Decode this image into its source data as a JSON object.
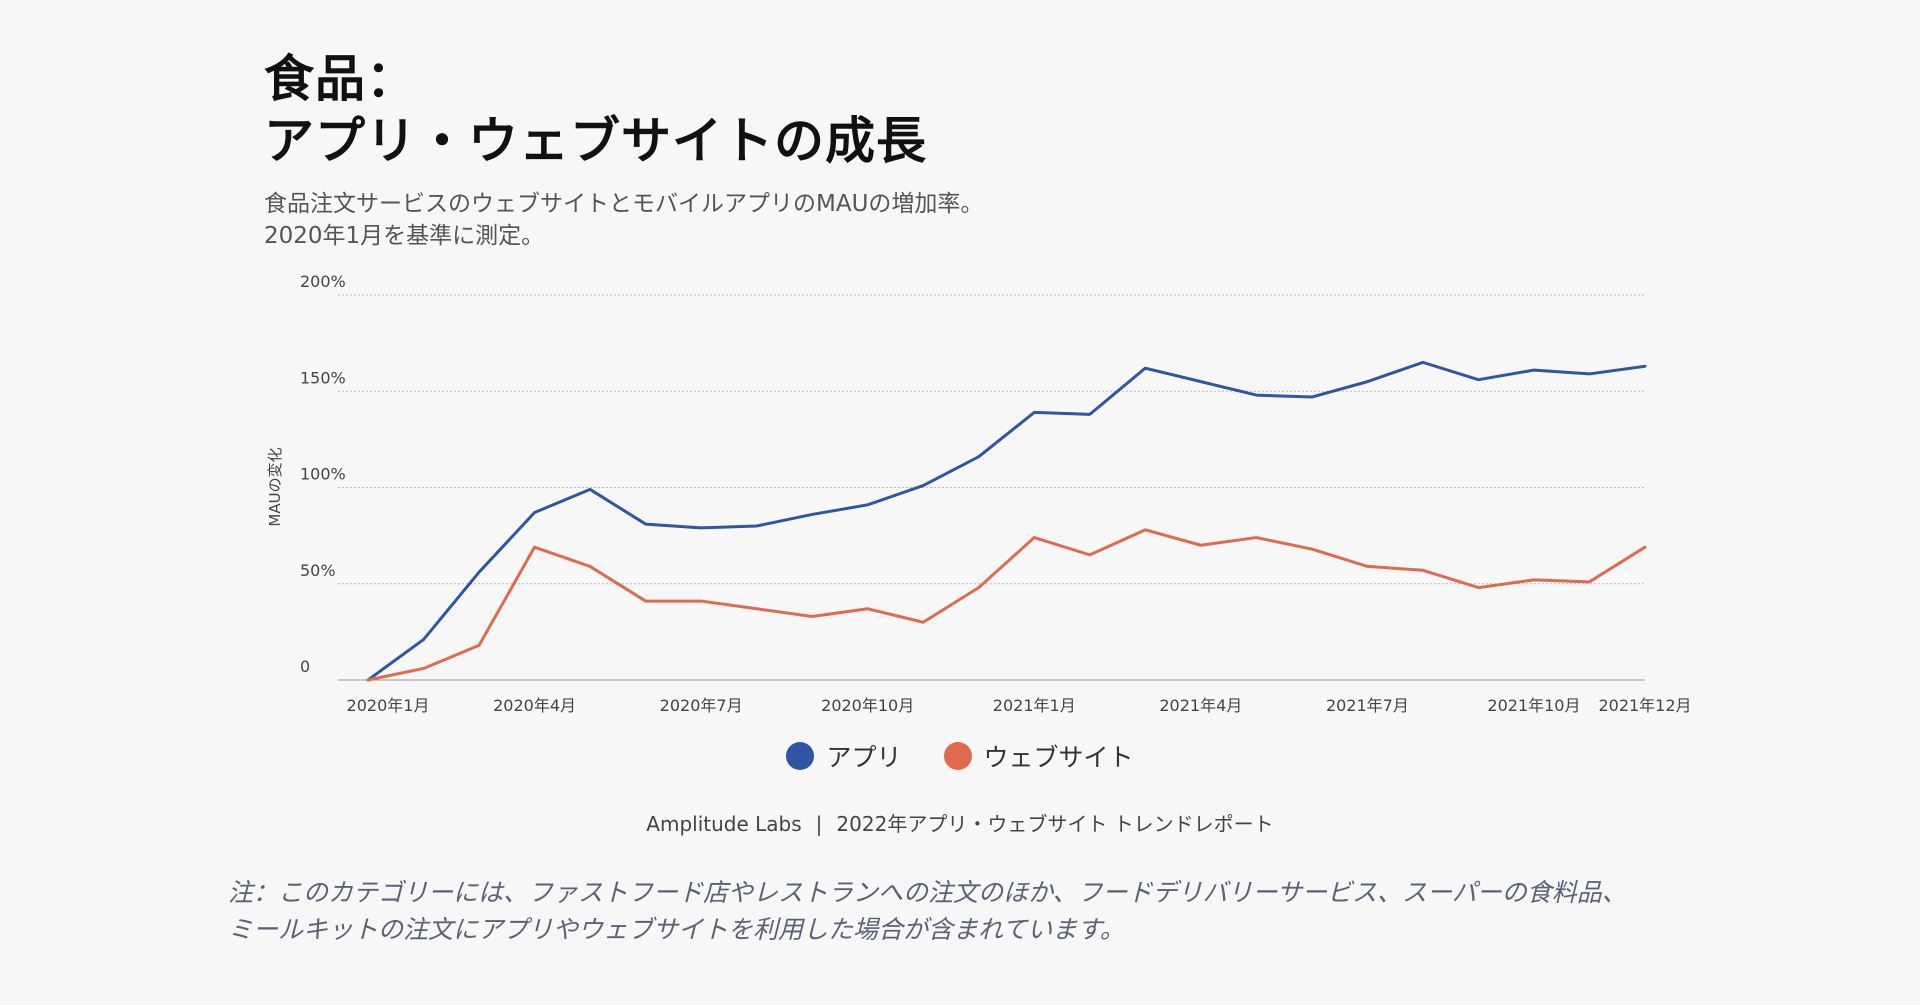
{
  "header": {
    "title_line1": "食品：",
    "title_line2": "アプリ・ウェブサイトの成長",
    "subtitle_line1": "食品注文サービスのウェブサイトとモバイルアプリのMAUの増加率。",
    "subtitle_line2": "2020年1月を基準に測定。"
  },
  "chart_data": {
    "type": "line",
    "title": "食品：アプリ・ウェブサイトの成長",
    "ylabel": "MAUの変化",
    "xlabel": "",
    "ylim": [
      0,
      200
    ],
    "y_ticks": [
      0,
      50,
      100,
      150,
      200
    ],
    "y_tick_labels": [
      "0",
      "50%",
      "100%",
      "150%",
      "200%"
    ],
    "x_tick_labels": [
      "2020年1月",
      "2020年4月",
      "2020年7月",
      "2020年10月",
      "2021年1月",
      "2021年4月",
      "2021年7月",
      "2021年10月",
      "2021年12月"
    ],
    "x_tick_months": [
      1,
      4,
      7,
      10,
      13,
      16,
      19,
      22,
      24
    ],
    "months": [
      1,
      2,
      3,
      4,
      5,
      6,
      7,
      8,
      9,
      10,
      11,
      12,
      13,
      14,
      15,
      16,
      17,
      18,
      19,
      20,
      21,
      22,
      23,
      24
    ],
    "grid": true,
    "series": [
      {
        "name": "アプリ",
        "color": "#2f56a3",
        "values": [
          0,
          21,
          56,
          87,
          99,
          81,
          79,
          80,
          86,
          91,
          101,
          116,
          139,
          138,
          162,
          155,
          148,
          147,
          155,
          165,
          156,
          161,
          159,
          163
        ]
      },
      {
        "name": "ウェブサイト",
        "color": "#e06a4e",
        "values": [
          0,
          6,
          18,
          69,
          59,
          41,
          41,
          37,
          33,
          37,
          30,
          48,
          74,
          65,
          78,
          70,
          74,
          68,
          59,
          57,
          48,
          52,
          51,
          69
        ]
      }
    ]
  },
  "legend": {
    "items": [
      "アプリ",
      "ウェブサイト"
    ]
  },
  "source": {
    "org": "Amplitude Labs",
    "separator": "|",
    "report": "2022年アプリ・ウェブサイト トレンドレポート"
  },
  "note": {
    "line1": "注：このカテゴリーには、ファストフード店やレストランへの注文のほか、フードデリバリーサービス、スーパーの食料品、",
    "line2": "ミールキットの注文にアプリやウェブサイトを利用した場合が含まれています。"
  }
}
